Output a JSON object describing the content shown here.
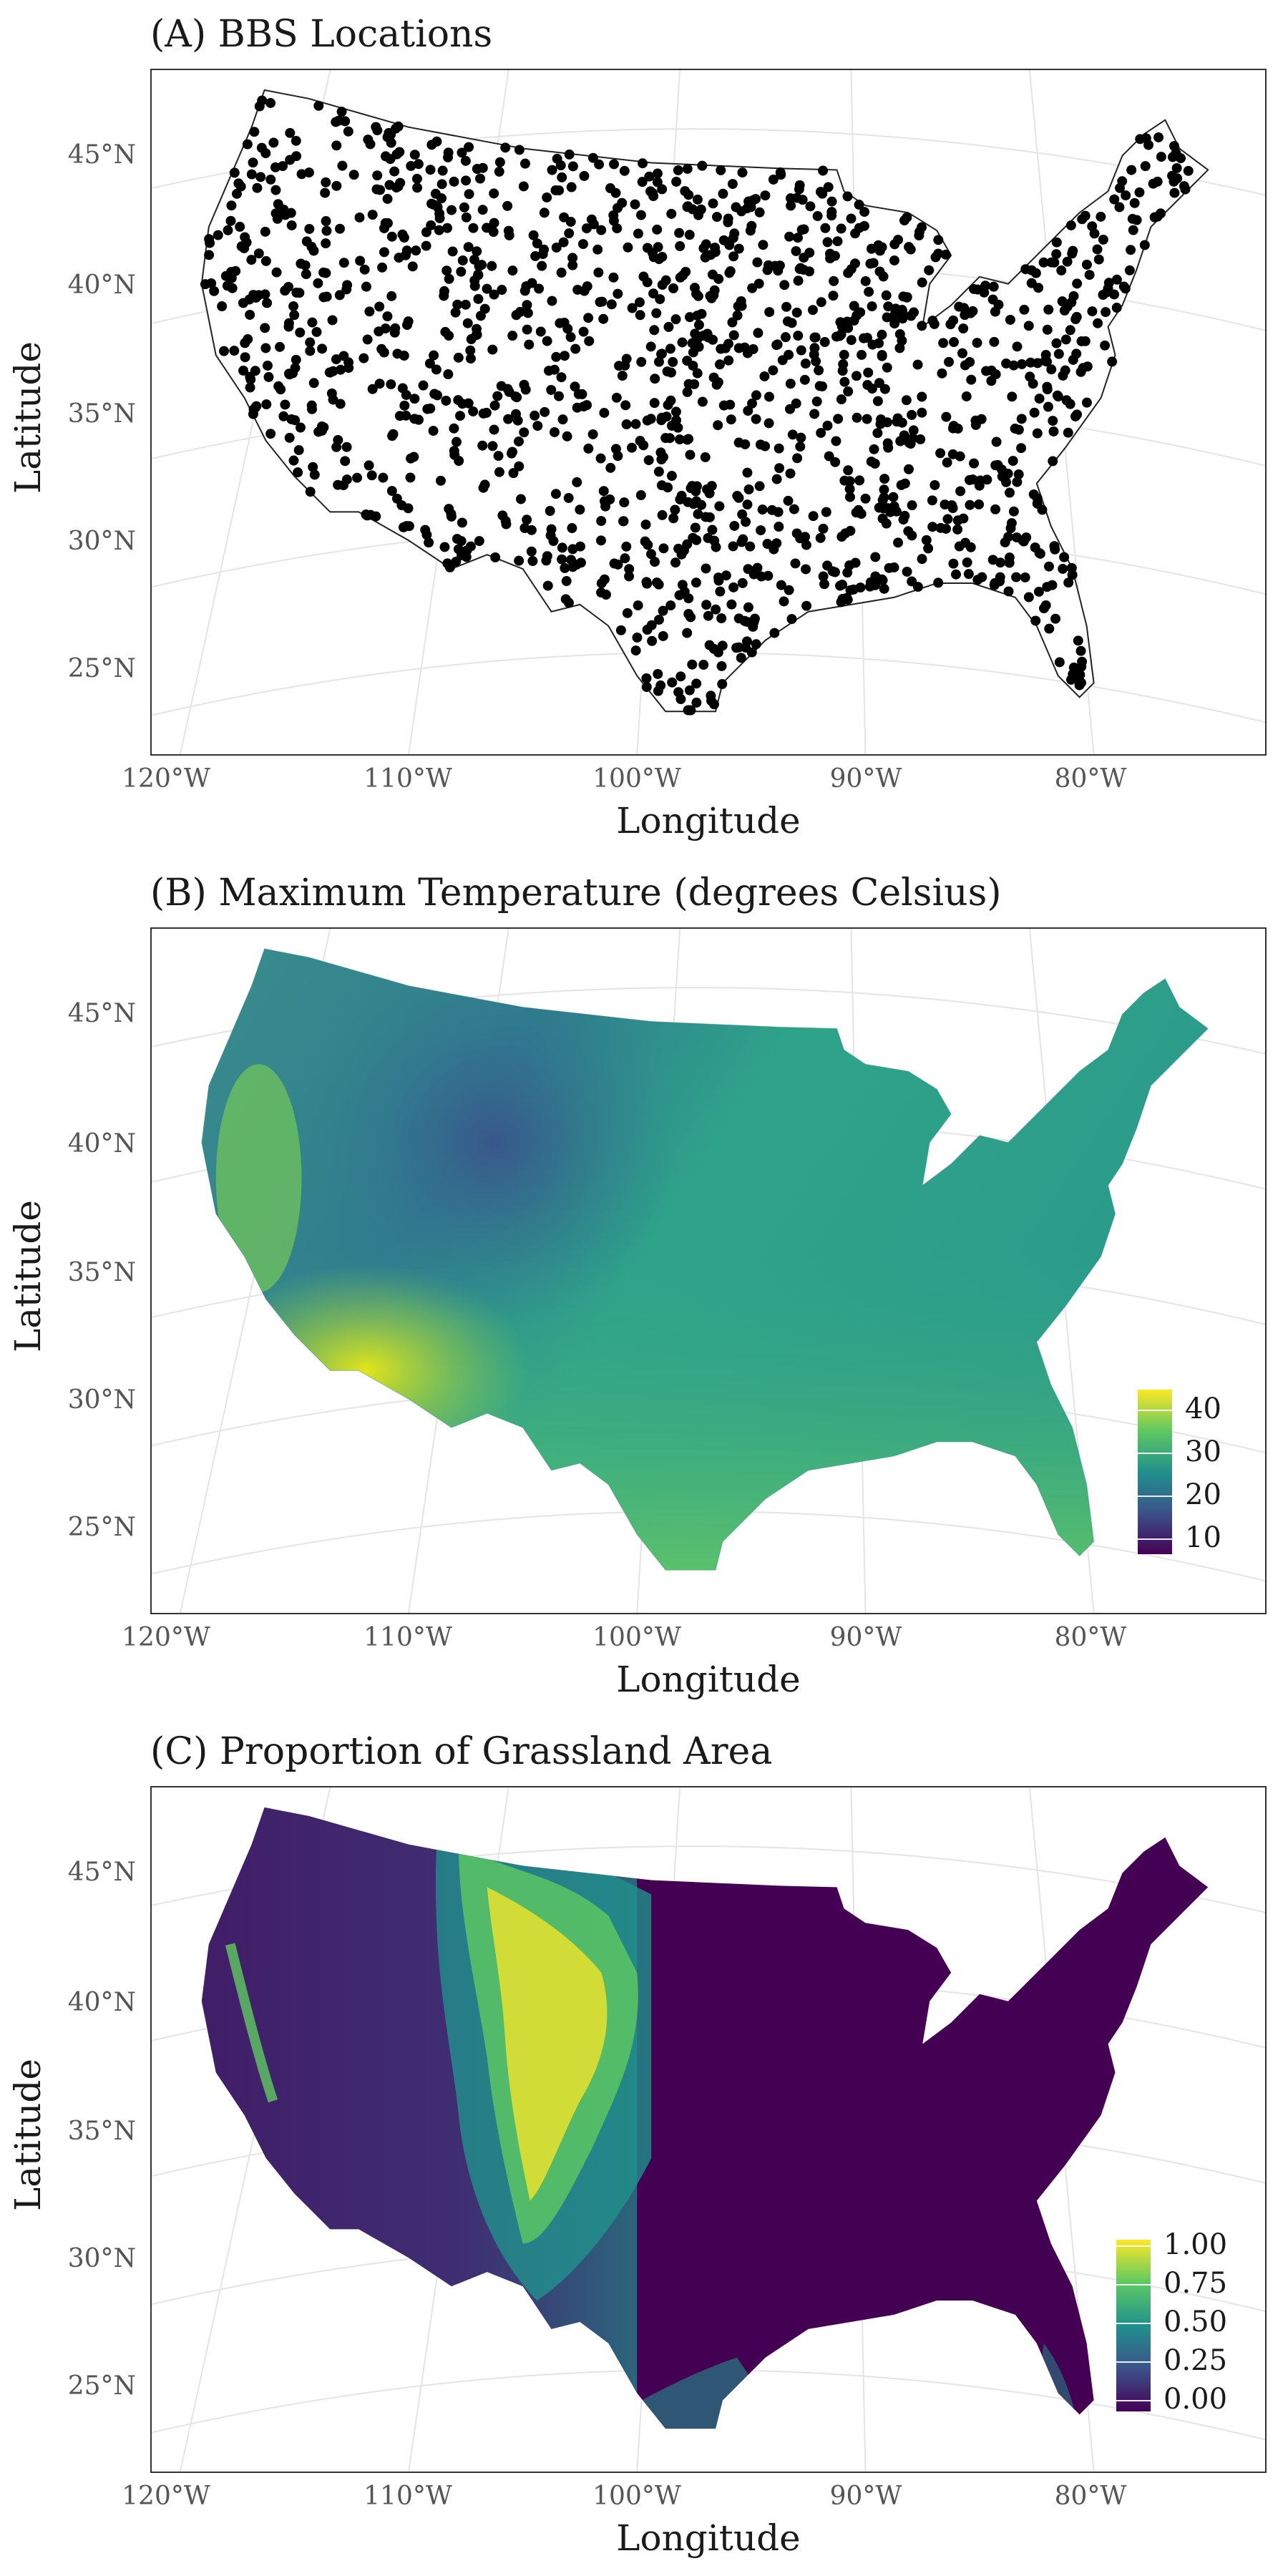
{
  "panels": [
    {
      "id": "a",
      "title": "(A) BBS Locations",
      "ylabel": "Latitude",
      "xlabel": "Longitude",
      "lat_ticks": [
        "45°N",
        "40°N",
        "35°N",
        "30°N",
        "25°N"
      ],
      "lon_ticks": [
        "120°W",
        "110°W",
        "100°W",
        "90°W",
        "80°W"
      ],
      "layer": "points"
    },
    {
      "id": "b",
      "title": "(B) Maximum Temperature (degrees Celsius)",
      "ylabel": "Latitude",
      "xlabel": "Longitude",
      "lat_ticks": [
        "45°N",
        "40°N",
        "35°N",
        "30°N",
        "25°N"
      ],
      "lon_ticks": [
        "120°W",
        "110°W",
        "100°W",
        "90°W",
        "80°W"
      ],
      "layer": "raster",
      "legend": [
        "40",
        "30",
        "20",
        "10"
      ]
    },
    {
      "id": "c",
      "title": "(C) Proportion of Grassland Area",
      "ylabel": "Latitude",
      "xlabel": "Longitude",
      "lat_ticks": [
        "45°N",
        "40°N",
        "35°N",
        "30°N",
        "25°N"
      ],
      "lon_ticks": [
        "120°W",
        "110°W",
        "100°W",
        "90°W",
        "80°W"
      ],
      "layer": "raster",
      "legend": [
        "1.00",
        "0.75",
        "0.50",
        "0.25",
        "0.00"
      ]
    }
  ],
  "colors": {
    "viridis": [
      "#440154",
      "#3b528b",
      "#21918c",
      "#5ec962",
      "#fde725"
    ],
    "land_b": "#2fa38a",
    "land_c": "#440154",
    "points": "#000000"
  }
}
